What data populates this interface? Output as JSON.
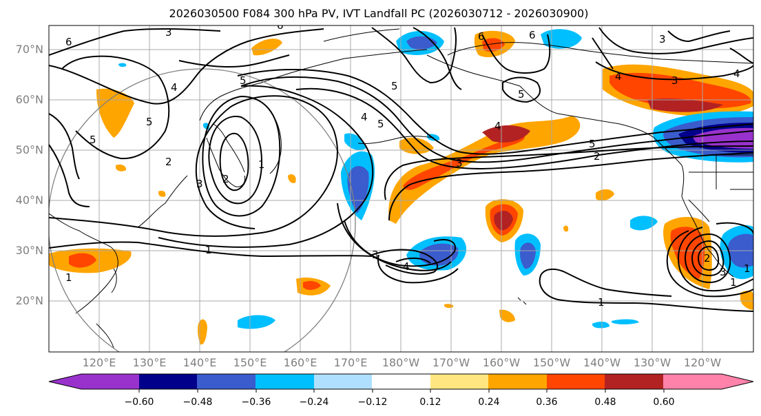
{
  "title": "2026030500 F084 300 hPa PV, IVT Landfall PC (2026030712 - 2026030900)",
  "lat_labels": [
    "70°N",
    "60°N",
    "50°N",
    "40°N",
    "30°N",
    "20°N"
  ],
  "lon_labels": [
    "120°E",
    "130°E",
    "140°E",
    "150°E",
    "160°E",
    "170°E",
    "180°W",
    "170°W",
    "160°W",
    "150°W",
    "140°W",
    "130°W",
    "120°W"
  ],
  "colorbar": {
    "ticks": [
      "−0.60",
      "−0.48",
      "−0.36",
      "−0.24",
      "−0.12",
      "0.12",
      "0.24",
      "0.36",
      "0.48",
      "0.60"
    ],
    "colors": [
      "#9932cc",
      "#00008b",
      "#3a5ccc",
      "#00bfff",
      "#b0e0ff",
      "#ffffff",
      "#ffe680",
      "#ffa500",
      "#ff4500",
      "#b22222",
      "#ff82ab"
    ]
  },
  "contour_labels": [
    "6",
    "3",
    "5",
    "6",
    "4",
    "5",
    "3",
    "2",
    "1",
    "5",
    "4",
    "3",
    "1",
    "5",
    "2",
    "4",
    "6",
    "5",
    "4",
    "3",
    "1",
    "4",
    "3",
    "6",
    "3",
    "5",
    "5",
    "2",
    "1",
    "1",
    "4",
    "3",
    "2",
    "1"
  ]
}
